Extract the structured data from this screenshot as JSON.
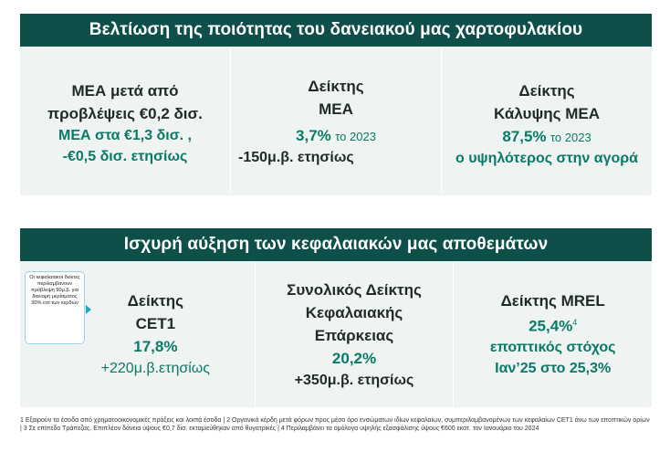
{
  "section1": {
    "title": "Βελτίωση της ποιότητας του δανειακού μας χαρτοφυλακίου",
    "col1": {
      "line1": "ΜΕΑ μετά από",
      "line2": "προβλέψεις €0,2 δισ.",
      "line3": "ΜΕΑ στα €1,3 δισ. ,",
      "line4": "-€0,5 δισ. ετησίως"
    },
    "col2": {
      "line1": "Δείκτης",
      "line2": "ΜΕΑ",
      "value": "3,7%",
      "value_suffix": "το 2023",
      "line4": "-150μ.β. ετησίως"
    },
    "col3": {
      "line1": "Δείκτης",
      "line2": "Κάλυψης ΜΕΑ",
      "value": "87,5%",
      "value_suffix": "το 2023",
      "line4": "ο υψηλότερος στην αγορά"
    }
  },
  "section2": {
    "title": "Ισχυρή αύξηση των κεφαλαιακών μας αποθεμάτων",
    "callout": "Οι κεφαλαιακοί δείκτες περιλαμβάνουν πρόβλεψη 90μ.β. για διανομή μερίσματος 30% επί των κερδών",
    "col1": {
      "line1": "Δείκτης",
      "line2": "CET1",
      "value": "17,8%",
      "line4": "+220μ.β.ετησίως"
    },
    "col2": {
      "line1": "Συνολικός Δείκτης",
      "line2": "Κεφαλαιακής",
      "line3": "Επάρκειας",
      "value": "20,2%",
      "line5": "+350μ.β. ετησίως"
    },
    "col3": {
      "line1": "Δείκτης MREL",
      "value": "25,4%",
      "value_sup": "4",
      "line3": "εποπτικός στόχος",
      "line4": "Ιαν’25 στο 25,3%"
    }
  },
  "footnote": "1 Εξαιρούν τα έσοδα από χρηματοοικονομικές πράξεις και λοιπά έσοδα | 2 Οργανικά κέρδη μετά φόρων προς μέσο όρο ενσώματων ιδίων κεφαλαίων, συμπεριλαμβανομένων των κεφαλαίων CET1 άνω των εποπτικών ορίων | 3 Σε επίπεδο Τράπεζας. Επιπλέον δάνεια ύψους €0,7 δισ. εκταμιεύθηκαν από θυγατρικές | 4 Περιλαμβάνει τα ομόλογα υψηλής εξασφάλισης ύψους €600 εκατ. τον Ιανουάριο του 2024"
}
